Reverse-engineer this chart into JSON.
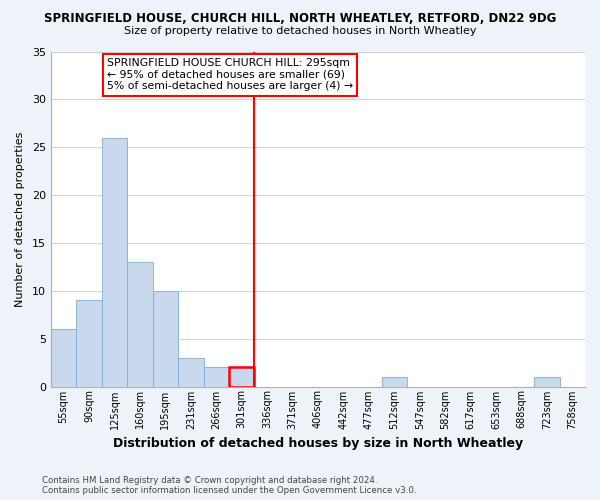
{
  "title_line1": "SPRINGFIELD HOUSE, CHURCH HILL, NORTH WHEATLEY, RETFORD, DN22 9DG",
  "title_line2": "Size of property relative to detached houses in North Wheatley",
  "bar_labels": [
    "55sqm",
    "90sqm",
    "125sqm",
    "160sqm",
    "195sqm",
    "231sqm",
    "266sqm",
    "301sqm",
    "336sqm",
    "371sqm",
    "406sqm",
    "442sqm",
    "477sqm",
    "512sqm",
    "547sqm",
    "582sqm",
    "617sqm",
    "653sqm",
    "688sqm",
    "723sqm",
    "758sqm"
  ],
  "bar_heights": [
    6,
    9,
    26,
    13,
    10,
    3,
    2,
    2,
    0,
    0,
    0,
    0,
    0,
    1,
    0,
    0,
    0,
    0,
    0,
    1,
    0
  ],
  "bar_color": "#c8d9ed",
  "bar_edge_color": "#7bafd4",
  "highlight_bar_index": 7,
  "highlight_bar_edge_color": "red",
  "vline_color": "red",
  "ylabel": "Number of detached properties",
  "xlabel": "Distribution of detached houses by size in North Wheatley",
  "ylim": [
    0,
    35
  ],
  "yticks": [
    0,
    5,
    10,
    15,
    20,
    25,
    30,
    35
  ],
  "annotation_title": "SPRINGFIELD HOUSE CHURCH HILL: 295sqm",
  "annotation_line1": "← 95% of detached houses are smaller (69)",
  "annotation_line2": "5% of semi-detached houses are larger (4) →",
  "footer_line1": "Contains HM Land Registry data © Crown copyright and database right 2024.",
  "footer_line2": "Contains public sector information licensed under the Open Government Licence v3.0.",
  "background_color": "#eef3f9",
  "plot_background_color": "#ffffff",
  "grid_color": "#d0d0d0"
}
